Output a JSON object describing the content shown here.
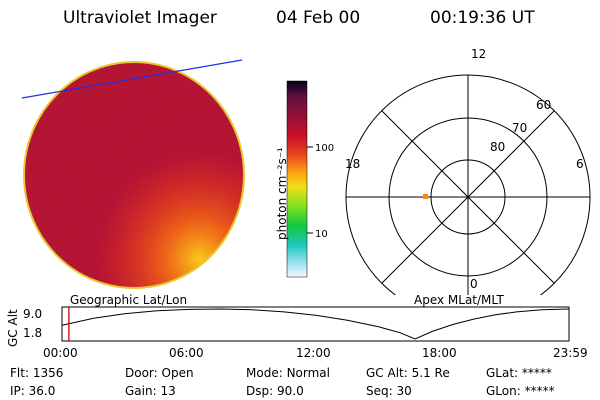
{
  "header": {
    "title": "Ultraviolet Imager",
    "date": "04 Feb 00",
    "time": "00:19:36 UT"
  },
  "colorbar": {
    "label": "photon cm⁻²s⁻¹",
    "ticks": [
      "100",
      "10"
    ]
  },
  "polar": {
    "mlt_labels": {
      "top": "12",
      "left": "18",
      "right": "6",
      "bottom": "0"
    },
    "lat_labels": [
      "60",
      "70",
      "80"
    ]
  },
  "strip": {
    "left_title": "Geographic Lat/Lon",
    "right_title": "Apex MLat/MLT",
    "ylabel": "GC Alt",
    "yticks": [
      "9.0",
      "1.8"
    ],
    "xticks": [
      "00:00",
      "06:00",
      "12:00",
      "18:00",
      "23:59"
    ],
    "altitude_curve": [
      {
        "t": 0.0,
        "alt": 5.1
      },
      {
        "t": 1.5,
        "alt": 6.8
      },
      {
        "t": 3.0,
        "alt": 7.9
      },
      {
        "t": 4.5,
        "alt": 8.6
      },
      {
        "t": 6.0,
        "alt": 8.9
      },
      {
        "t": 7.5,
        "alt": 9.0
      },
      {
        "t": 9.0,
        "alt": 8.8
      },
      {
        "t": 10.5,
        "alt": 8.3
      },
      {
        "t": 12.0,
        "alt": 7.5
      },
      {
        "t": 13.5,
        "alt": 6.3
      },
      {
        "t": 15.0,
        "alt": 4.7
      },
      {
        "t": 16.0,
        "alt": 3.3
      },
      {
        "t": 16.7,
        "alt": 1.8
      },
      {
        "t": 17.5,
        "alt": 3.6
      },
      {
        "t": 18.5,
        "alt": 5.3
      },
      {
        "t": 19.5,
        "alt": 6.6
      },
      {
        "t": 20.5,
        "alt": 7.6
      },
      {
        "t": 21.5,
        "alt": 8.3
      },
      {
        "t": 22.7,
        "alt": 8.8
      },
      {
        "t": 23.98,
        "alt": 9.0
      }
    ],
    "current_time_hours": 0.327
  },
  "status": {
    "filter": {
      "label": "Flt:",
      "value": "1356"
    },
    "ip": {
      "label": "IP:",
      "value": "36.0"
    },
    "door": {
      "label": "Door:",
      "value": "Open"
    },
    "gain": {
      "label": "Gain:",
      "value": "13"
    },
    "mode": {
      "label": "Mode:",
      "value": "Normal"
    },
    "dsp": {
      "label": "Dsp:",
      "value": "90.0"
    },
    "gc_alt": {
      "label": "GC Alt:",
      "value": "5.1 Re"
    },
    "seq": {
      "label": "Seq:",
      "value": "30"
    },
    "glat": {
      "label": "GLat:",
      "value": "*****"
    },
    "glon": {
      "label": "GLon:",
      "value": "*****"
    }
  },
  "colors": {
    "disk_base": "#b4102a",
    "horizon_line": "#2030e0",
    "marker": "#ff8800",
    "time_marker": "#cc0000"
  }
}
